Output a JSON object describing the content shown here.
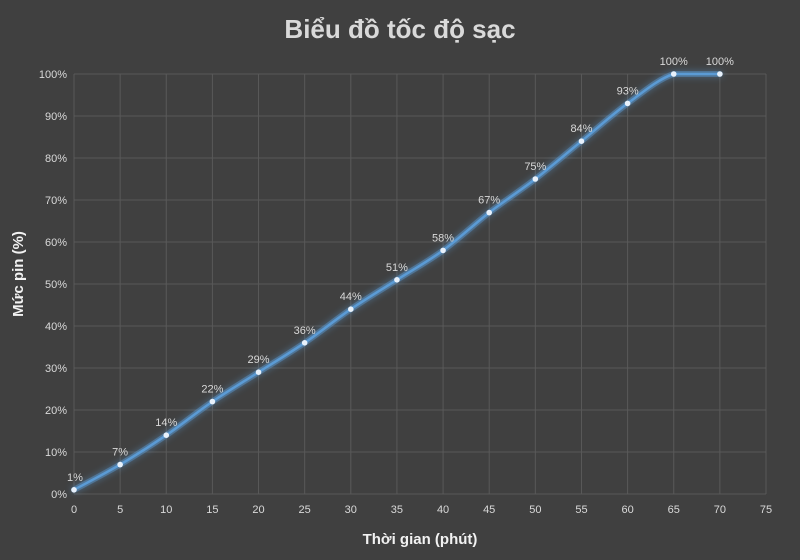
{
  "chart_data": {
    "type": "line",
    "title": "Biểu đồ tốc độ sạc",
    "xlabel": "Thời gian (phút)",
    "ylabel": "Mức pin (%)",
    "x": [
      0,
      5,
      10,
      15,
      20,
      25,
      30,
      35,
      40,
      45,
      50,
      55,
      60,
      65,
      70
    ],
    "series": [
      {
        "values": [
          1,
          7,
          14,
          22,
          29,
          36,
          44,
          51,
          58,
          67,
          75,
          84,
          93,
          100,
          100
        ],
        "data_labels": [
          "1%",
          "7%",
          "14%",
          "22%",
          "29%",
          "36%",
          "44%",
          "51%",
          "58%",
          "67%",
          "75%",
          "84%",
          "93%",
          "100%",
          "100%"
        ]
      }
    ],
    "xlim": [
      0,
      75
    ],
    "ylim": [
      0,
      100
    ],
    "x_ticks": [
      "0",
      "5",
      "10",
      "15",
      "20",
      "25",
      "30",
      "35",
      "40",
      "45",
      "50",
      "55",
      "60",
      "65",
      "70",
      "75"
    ],
    "y_ticks": [
      "0%",
      "10%",
      "20%",
      "30%",
      "40%",
      "50%",
      "60%",
      "70%",
      "80%",
      "90%",
      "100%"
    ],
    "grid": true,
    "smooth": true,
    "legend": "none",
    "colors": {
      "background": "#404040",
      "gridline": "#595959",
      "line": "#5b9bd5",
      "glow": "#5b9bd5",
      "marker": "#e8f1fb",
      "text": "#d9d9d9"
    }
  }
}
